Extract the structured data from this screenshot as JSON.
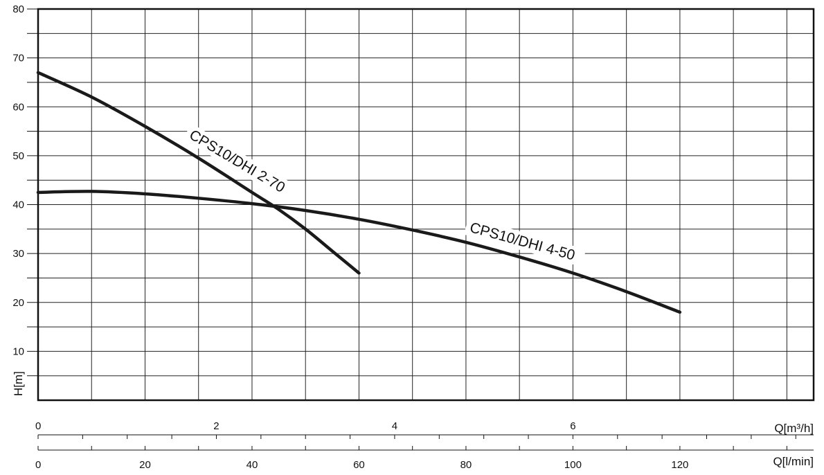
{
  "chart_data": {
    "type": "line",
    "ylabel": "H[m]",
    "ylim": [
      0,
      80
    ],
    "yticks": [
      10,
      20,
      30,
      40,
      50,
      60,
      70,
      80
    ],
    "x": {
      "label": "Q[l/min]",
      "lim": [
        0,
        145
      ],
      "ticks": [
        0,
        20,
        40,
        60,
        80,
        100,
        120
      ]
    },
    "x2": {
      "label": "Q[m³/h]",
      "ticks": [
        0,
        2,
        4,
        6
      ]
    },
    "grid": true,
    "series": [
      {
        "name": "CPS10/DHI 2-70",
        "x": [
          0,
          10,
          20,
          30,
          40,
          45,
          50,
          55,
          60
        ],
        "y": [
          67,
          62,
          56,
          49.5,
          42.5,
          39,
          35,
          30.5,
          26
        ]
      },
      {
        "name": "CPS10/DHI 4-50",
        "x": [
          0,
          10,
          20,
          30,
          40,
          50,
          60,
          70,
          80,
          90,
          100,
          110,
          120
        ],
        "y": [
          42.5,
          42.7,
          42.2,
          41.3,
          40.2,
          38.8,
          37,
          34.8,
          32.3,
          29.3,
          26,
          22.2,
          18
        ]
      }
    ]
  }
}
